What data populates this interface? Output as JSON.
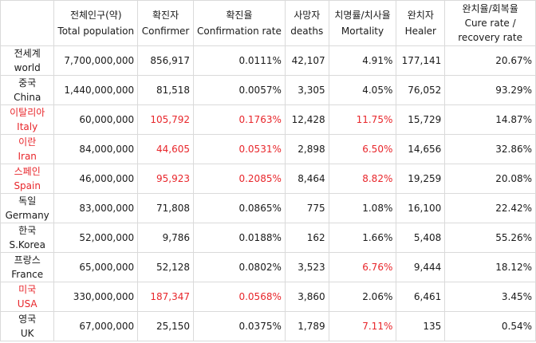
{
  "colors": {
    "highlight": "#e8262b",
    "text": "#1a1a1a",
    "grid": "#dadada"
  },
  "headers": [
    {
      "ko": "",
      "en": ""
    },
    {
      "ko": "전체인구(약)",
      "en": "Total population"
    },
    {
      "ko": "확진자",
      "en": "Confirmer"
    },
    {
      "ko": "확진율",
      "en": "Confirmation rate"
    },
    {
      "ko": "사망자",
      "en": "deaths"
    },
    {
      "ko": "치명률/치사율",
      "en": "Mortality"
    },
    {
      "ko": "완치자",
      "en": "Healer"
    },
    {
      "ko": "완치율/회복율",
      "en": "Cure rate /",
      "en2": "recovery rate"
    }
  ],
  "rows": [
    {
      "ko": "전세계",
      "en": "world",
      "population": "7,700,000,000",
      "confirmed": "856,917",
      "confirmation_rate": "0.0111%",
      "deaths": "42,107",
      "mortality": "4.91%",
      "healed": "177,141",
      "cure_rate": "20.67%",
      "red_name": false,
      "red_confirmed": false,
      "red_mortality": false
    },
    {
      "ko": "중국",
      "en": "China",
      "population": "1,440,000,000",
      "confirmed": "81,518",
      "confirmation_rate": "0.0057%",
      "deaths": "3,305",
      "mortality": "4.05%",
      "healed": "76,052",
      "cure_rate": "93.29%",
      "red_name": false,
      "red_confirmed": false,
      "red_mortality": false
    },
    {
      "ko": "이탈리아",
      "en": "Italy",
      "population": "60,000,000",
      "confirmed": "105,792",
      "confirmation_rate": "0.1763%",
      "deaths": "12,428",
      "mortality": "11.75%",
      "healed": "15,729",
      "cure_rate": "14.87%",
      "red_name": true,
      "red_confirmed": true,
      "red_mortality": true
    },
    {
      "ko": "이란",
      "en": "Iran",
      "population": "84,000,000",
      "confirmed": "44,605",
      "confirmation_rate": "0.0531%",
      "deaths": "2,898",
      "mortality": "6.50%",
      "healed": "14,656",
      "cure_rate": "32.86%",
      "red_name": true,
      "red_confirmed": true,
      "red_mortality": true
    },
    {
      "ko": "스페인",
      "en": "Spain",
      "population": "46,000,000",
      "confirmed": "95,923",
      "confirmation_rate": "0.2085%",
      "deaths": "8,464",
      "mortality": "8.82%",
      "healed": "19,259",
      "cure_rate": "20.08%",
      "red_name": true,
      "red_confirmed": true,
      "red_mortality": true
    },
    {
      "ko": "독일",
      "en": "Germany",
      "population": "83,000,000",
      "confirmed": "71,808",
      "confirmation_rate": "0.0865%",
      "deaths": "775",
      "mortality": "1.08%",
      "healed": "16,100",
      "cure_rate": "22.42%",
      "red_name": false,
      "red_confirmed": false,
      "red_mortality": false
    },
    {
      "ko": "한국",
      "en": "S.Korea",
      "population": "52,000,000",
      "confirmed": "9,786",
      "confirmation_rate": "0.0188%",
      "deaths": "162",
      "mortality": "1.66%",
      "healed": "5,408",
      "cure_rate": "55.26%",
      "red_name": false,
      "red_confirmed": false,
      "red_mortality": false
    },
    {
      "ko": "프랑스",
      "en": "France",
      "population": "65,000,000",
      "confirmed": "52,128",
      "confirmation_rate": "0.0802%",
      "deaths": "3,523",
      "mortality": "6.76%",
      "healed": "9,444",
      "cure_rate": "18.12%",
      "red_name": false,
      "red_confirmed": false,
      "red_mortality": true
    },
    {
      "ko": "미국",
      "en": "USA",
      "population": "330,000,000",
      "confirmed": "187,347",
      "confirmation_rate": "0.0568%",
      "deaths": "3,860",
      "mortality": "2.06%",
      "healed": "6,461",
      "cure_rate": "3.45%",
      "red_name": true,
      "red_confirmed": true,
      "red_mortality": false
    },
    {
      "ko": "영국",
      "en": "UK",
      "population": "67,000,000",
      "confirmed": "25,150",
      "confirmation_rate": "0.0375%",
      "deaths": "1,789",
      "mortality": "7.11%",
      "healed": "135",
      "cure_rate": "0.54%",
      "red_name": false,
      "red_confirmed": false,
      "red_mortality": true
    }
  ]
}
